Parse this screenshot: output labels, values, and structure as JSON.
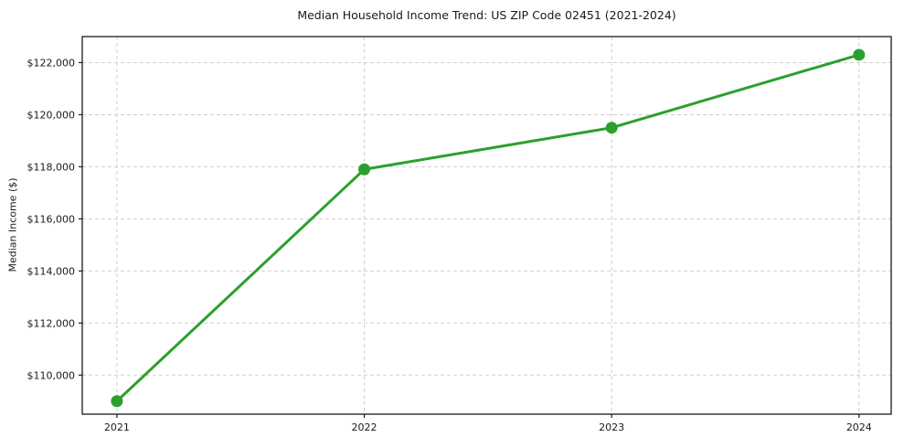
{
  "title": "Median Household Income Trend: US ZIP Code 02451 (2021-2024)",
  "chart_data": {
    "type": "line",
    "title": "Median Household Income Trend: US ZIP Code 02451 (2021-2024)",
    "xlabel": "",
    "ylabel": "Median Income ($)",
    "x": [
      2021,
      2022,
      2023,
      2024
    ],
    "values": [
      109000,
      117900,
      119500,
      122300
    ],
    "xtick_labels": [
      "2021",
      "2022",
      "2023",
      "2024"
    ],
    "yticks": [
      110000,
      112000,
      114000,
      116000,
      118000,
      120000,
      122000
    ],
    "ytick_labels": [
      "$110,000",
      "$112,000",
      "$114,000",
      "$116,000",
      "$118,000",
      "$120,000",
      "$122,000"
    ],
    "xlim": [
      2020.86,
      2024.13
    ],
    "ylim": [
      108500,
      123000
    ],
    "grid": true,
    "legend_position": "none",
    "line_color": "#2ca02c",
    "marker": "circle",
    "marker_color": "#2ca02c",
    "grid_color": "#cfcfcf",
    "spine_color": "#1a1a1a",
    "tick_label_color": "#1a1a1a",
    "background_color": "#ffffff"
  }
}
